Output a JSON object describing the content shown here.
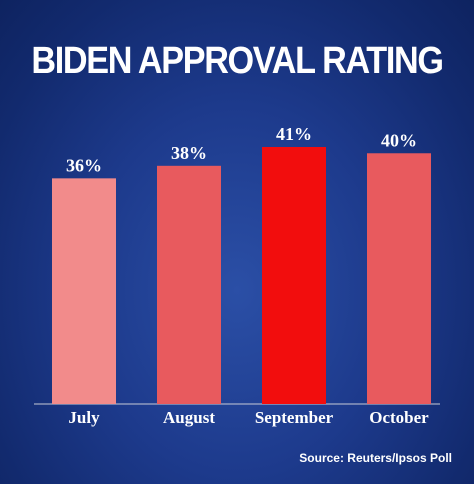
{
  "chart_data": {
    "type": "bar",
    "title": "BIDEN APPROVAL RATING",
    "categories": [
      "July",
      "August",
      "September",
      "October"
    ],
    "values": [
      36,
      38,
      41,
      40
    ],
    "value_labels": [
      "36%",
      "38%",
      "41%",
      "40%"
    ],
    "bar_colors": [
      "#f28b8b",
      "#e85a5e",
      "#f20d0d",
      "#e85a5e"
    ],
    "ylim": [
      0,
      41
    ],
    "xlabel": "",
    "ylabel": "",
    "grid": false,
    "legend": "none",
    "source": "Source: Reuters/Ipsos Poll"
  }
}
